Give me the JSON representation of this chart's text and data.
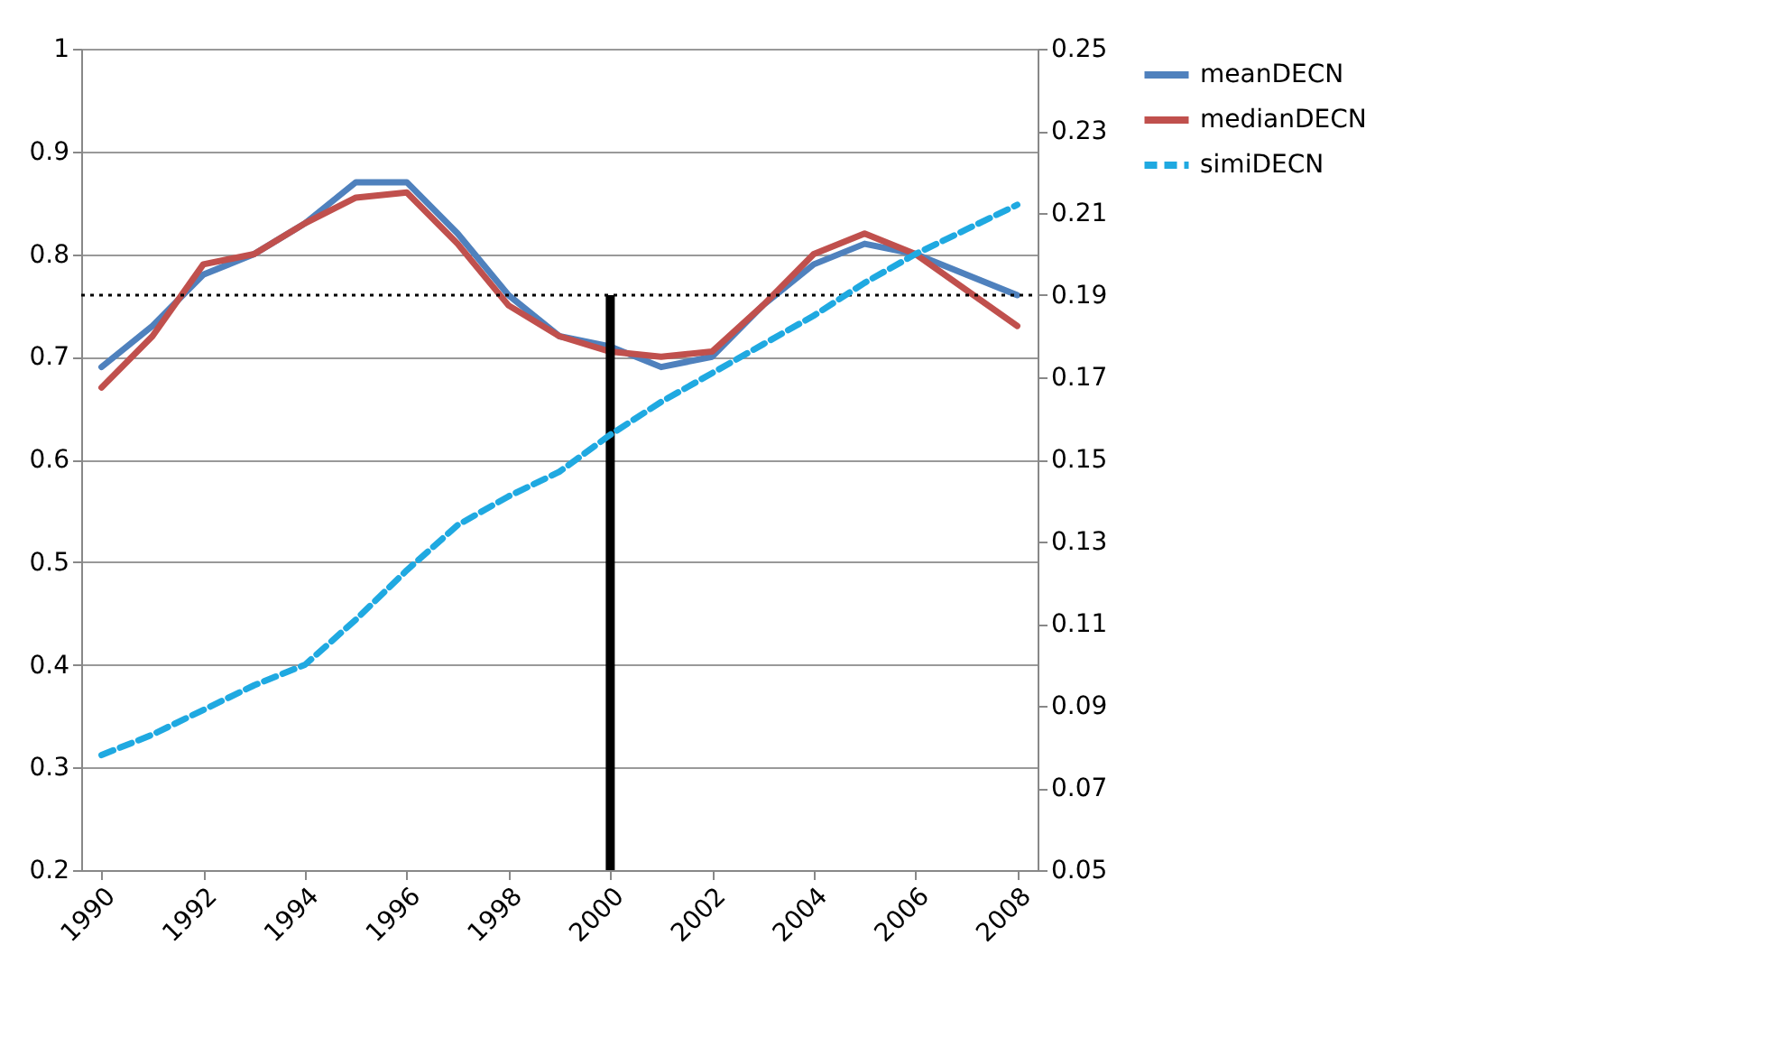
{
  "chart_data": {
    "type": "line",
    "x": [
      1990,
      1991,
      1992,
      1993,
      1994,
      1995,
      1996,
      1997,
      1998,
      1999,
      2000,
      2001,
      2002,
      2003,
      2004,
      2005,
      2006,
      2007,
      2008
    ],
    "series": [
      {
        "name": "meanDECN",
        "color": "#4f81bd",
        "line_style": "solid",
        "values": [
          0.69,
          0.73,
          0.78,
          0.8,
          0.83,
          0.87,
          0.87,
          0.82,
          0.76,
          0.72,
          0.71,
          0.69,
          0.7,
          0.75,
          0.79,
          0.81,
          0.8,
          0.78,
          0.76
        ]
      },
      {
        "name": "medianDECN",
        "color": "#c0504d",
        "line_style": "solid",
        "values": [
          0.67,
          0.72,
          0.79,
          0.8,
          0.83,
          0.855,
          0.86,
          0.81,
          0.75,
          0.72,
          0.705,
          0.7,
          0.705,
          0.75,
          0.8,
          0.82,
          0.8,
          0.765,
          0.73
        ]
      },
      {
        "name": "simiDECN",
        "color": "#1fa9e1",
        "line_style": "dashed",
        "axis": "y2",
        "values": [
          0.078,
          0.083,
          0.089,
          0.095,
          0.1,
          0.111,
          0.123,
          0.134,
          0.141,
          0.147,
          0.156,
          0.164,
          0.171,
          0.178,
          0.185,
          0.193,
          0.2,
          0.206,
          0.212
        ]
      }
    ],
    "xlim": [
      1989.6,
      2008.4
    ],
    "xticks": [
      1990,
      1992,
      1994,
      1996,
      1998,
      2000,
      2002,
      2004,
      2006,
      2008
    ],
    "ylim": [
      0.2,
      1
    ],
    "yticks": [
      0.2,
      0.3,
      0.4,
      0.5,
      0.6,
      0.7,
      0.8,
      0.9,
      1
    ],
    "y2lim": [
      0.05,
      0.25
    ],
    "y2ticks": [
      0.05,
      0.07,
      0.09,
      0.11,
      0.13,
      0.15,
      0.17,
      0.19,
      0.21,
      0.23,
      0.25
    ],
    "ref_lines": [
      {
        "axis": "y",
        "value": 0.76,
        "color": "#000000",
        "line_style": "dotted"
      },
      {
        "axis": "x",
        "value": 2000,
        "color": "#000000",
        "line_style": "solid"
      }
    ],
    "grid": "y",
    "legend": "right",
    "marker": "none"
  }
}
